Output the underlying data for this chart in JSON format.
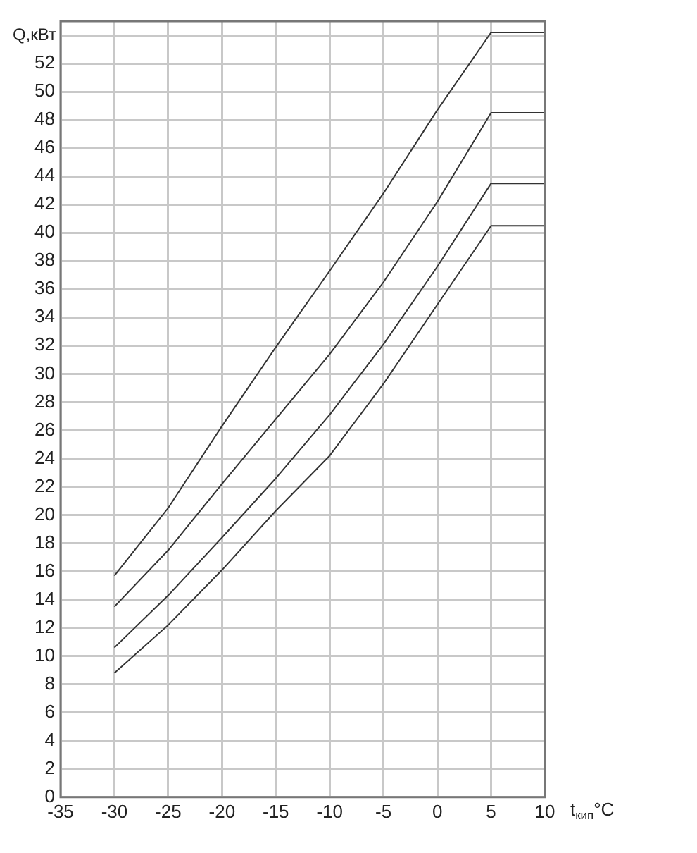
{
  "chart_data": {
    "type": "line",
    "xlabel": "t$_{кип}$°C",
    "ylabel": "Q,кВт",
    "xlim": [
      -35,
      10
    ],
    "xticks": [
      -35,
      -30,
      -25,
      -20,
      -15,
      -10,
      -5,
      0,
      5,
      10
    ],
    "ylim": [
      0,
      55
    ],
    "yticks": [
      0,
      2,
      4,
      6,
      8,
      10,
      12,
      14,
      16,
      18,
      20,
      22,
      24,
      26,
      28,
      30,
      32,
      34,
      36,
      38,
      40,
      42,
      44,
      46,
      48,
      50,
      52,
      {
        "value": 54,
        "label": null
      }
    ],
    "grid": true,
    "marker": "none",
    "line_style": "solid",
    "series": [
      {
        "color": "#333333",
        "x": [
          -30,
          -25,
          -20,
          -15,
          -10,
          -5,
          0,
          5,
          10
        ],
        "values": [
          15.7,
          20.5,
          26.3,
          31.9,
          37.3,
          42.8,
          48.7,
          54.2,
          54.2
        ]
      },
      {
        "color": "#333333",
        "x": [
          -30,
          -25,
          -20,
          -15,
          -10,
          -5,
          0,
          5,
          10
        ],
        "values": [
          13.5,
          17.5,
          22.2,
          26.8,
          31.4,
          36.5,
          42.2,
          48.5,
          48.5
        ]
      },
      {
        "color": "#333333",
        "x": [
          -30,
          -25,
          -20,
          -15,
          -10,
          -5,
          0,
          5,
          10
        ],
        "values": [
          10.6,
          14.3,
          18.4,
          22.6,
          27.1,
          32.1,
          37.6,
          43.5,
          43.5
        ]
      },
      {
        "color": "#333333",
        "x": [
          -30,
          -25,
          -20,
          -15,
          -10,
          -5,
          0,
          5,
          10
        ],
        "values": [
          8.8,
          12.2,
          16.1,
          20.3,
          24.2,
          29.3,
          34.9,
          40.5,
          40.5
        ]
      }
    ]
  }
}
